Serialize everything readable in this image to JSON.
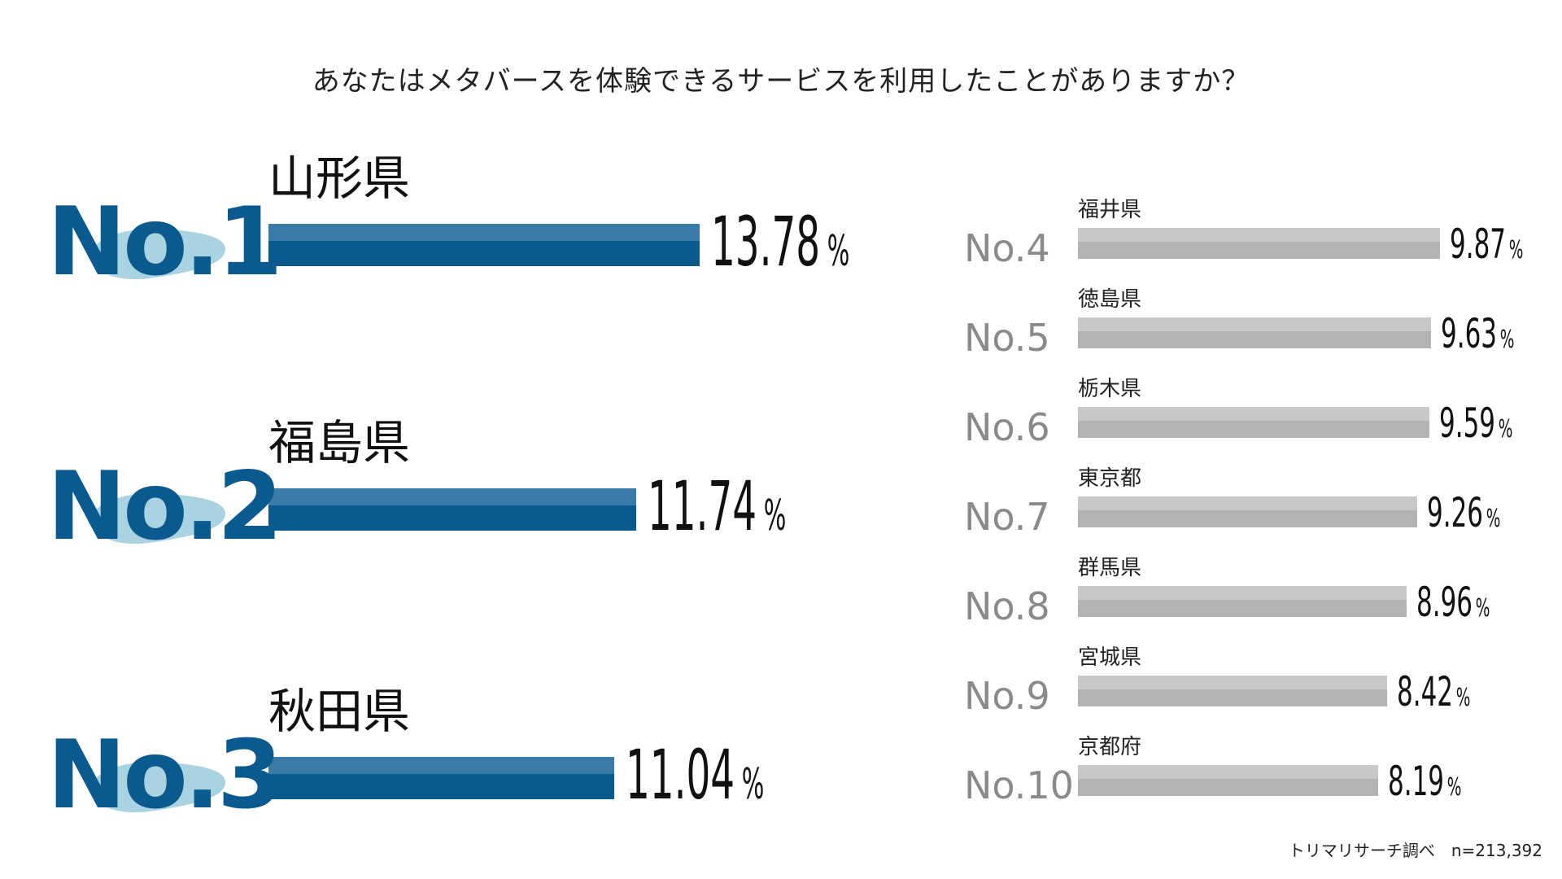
{
  "chart_data": {
    "type": "bar",
    "title": "あなたはメタバースを体験できるサービスを利用したことがありますか？",
    "unit": "%",
    "categories": [
      "山形県",
      "福島県",
      "秋田県",
      "福井県",
      "徳島県",
      "栃木県",
      "東京都",
      "群馬県",
      "宮城県",
      "京都府"
    ],
    "ranks": [
      "No.1",
      "No.2",
      "No.3",
      "No.4",
      "No.5",
      "No.6",
      "No.7",
      "No.8",
      "No.9",
      "No.10"
    ],
    "values": [
      13.78,
      11.74,
      11.04,
      9.87,
      9.63,
      9.59,
      9.26,
      8.96,
      8.42,
      8.19
    ],
    "value_labels": [
      "13.78",
      "11.74",
      "11.04",
      "9.87",
      "9.63",
      "9.59",
      "9.26",
      "8.96",
      "8.42",
      "8.19"
    ],
    "colors": {
      "top": "#0b5a8f",
      "top_light": "#3a7aa6",
      "rest": "#b3b3b3",
      "splash": "#a9d3e1"
    }
  },
  "footer": {
    "source": "トリマリサーチ調べ　n=213,392"
  }
}
